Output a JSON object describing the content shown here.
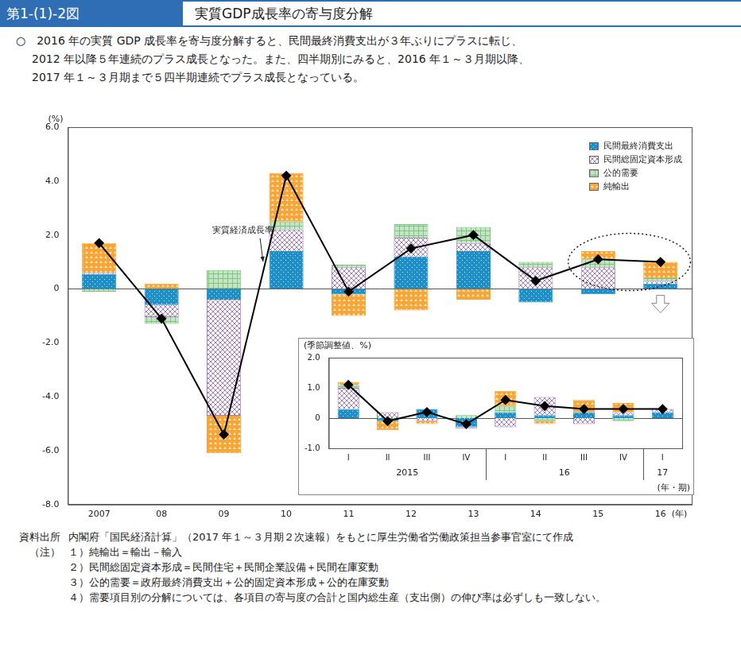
{
  "header": {
    "figure_number": "第1-(1)-2図",
    "title": "実質GDP成長率の寄与度分解"
  },
  "description": [
    "○　2016 年の実質 GDP 成長率を寄与度分解すると、民間最終消費支出が３年ぶりにプラスに転じ、",
    "2012 年以降５年連続のプラス成長となった。また、四半期別にみると、2016 年１～３月期以降、",
    "2017 年１～３月期まで５四半期連続でプラス成長となっている。"
  ],
  "source_label": "資料出所",
  "source": "内閣府「国民経済計算」（2017 年１～３月期２次速報）をもとに厚生労働省労働政策担当参事官室にて作成",
  "notes_label": "（注）",
  "notes": [
    "１）純輸出＝輸出－輸入",
    "２）民間総固定資本形成＝民間住宅＋民間企業設備＋民間在庫変動",
    "３）公的需要＝政府最終消費支出＋公的固定資本形成＋公的在庫変動",
    "４）需要項目別の分解については、各項目の寄与度の合計と国内総生産（支出側）の伸び率は必ずしも一致しない。"
  ],
  "chart_data": [
    {
      "type": "bar",
      "stacked": true,
      "grid": false,
      "legend": "upper right",
      "y_label": "(%)",
      "x_label": "(年)",
      "categories": [
        "2007",
        "08",
        "09",
        "10",
        "11",
        "12",
        "13",
        "14",
        "15",
        "16"
      ],
      "series": [
        {
          "name": "民間最終消費支出",
          "color": "#1f8fc9",
          "values": [
            0.55,
            -0.6,
            -0.4,
            1.4,
            -0.2,
            1.2,
            1.4,
            -0.5,
            -0.2,
            0.2
          ]
        },
        {
          "name": "民間総固定資本形成",
          "color": "#a57dbf",
          "values": [
            0.05,
            -0.45,
            -4.3,
            0.8,
            0.8,
            0.7,
            0.3,
            0.8,
            0.8,
            0.1
          ]
        },
        {
          "name": "公的需要",
          "color": "#7fc47f",
          "values": [
            -0.1,
            -0.25,
            0.7,
            0.3,
            0.1,
            0.5,
            0.6,
            0.2,
            0.3,
            0.1
          ]
        },
        {
          "name": "純輸出",
          "color": "#f7a535",
          "values": [
            1.1,
            0.2,
            -1.4,
            1.8,
            -0.8,
            -0.8,
            -0.4,
            0.0,
            0.3,
            0.6
          ]
        },
        {
          "name": "実質経済成長率",
          "type": "line",
          "color": "#000000",
          "marker": "diamond",
          "values": [
            1.7,
            -1.1,
            -5.4,
            4.2,
            -0.1,
            1.5,
            2.0,
            0.3,
            1.1,
            1.0
          ]
        }
      ],
      "ylim": [
        -8,
        6
      ],
      "yticks": [
        {
          "value": -8,
          "label": "-8.0"
        },
        {
          "value": -6,
          "label": "-6.0"
        },
        {
          "value": -4,
          "label": "-4.0"
        },
        {
          "value": -2,
          "label": "-2.0"
        },
        0,
        {
          "value": 2,
          "label": "2.0"
        },
        {
          "value": 4,
          "label": "4.0"
        },
        {
          "value": 6,
          "label": "6.0"
        }
      ]
    },
    {
      "type": "bar",
      "stacked": true,
      "grid": false,
      "y_label": "(季節調整値、%)",
      "x_label": "(年・期)",
      "categories": [
        "I",
        "II",
        "III",
        "IV",
        "I",
        "II",
        "III",
        "IV",
        "I"
      ],
      "category_groups": [
        {
          "label": "2015",
          "count": 4
        },
        {
          "label": "16",
          "count": 4
        },
        {
          "label": "17",
          "count": 1
        }
      ],
      "series": [
        {
          "name": "民間最終消費支出",
          "color": "#1f8fc9",
          "values": [
            0.3,
            -0.1,
            0.3,
            -0.3,
            0.2,
            0.1,
            0.2,
            0.1,
            0.2
          ]
        },
        {
          "name": "民間総固定資本形成",
          "color": "#a57dbf",
          "values": [
            0.7,
            0.2,
            -0.1,
            -0.05,
            -0.3,
            0.6,
            -0.2,
            0.1,
            0.1
          ]
        },
        {
          "name": "公的需要",
          "color": "#7fc47f",
          "values": [
            0.1,
            0.0,
            0.0,
            0.1,
            0.2,
            -0.1,
            0.0,
            -0.1,
            0.0
          ]
        },
        {
          "name": "純輸出",
          "color": "#f7a535",
          "values": [
            0.1,
            -0.3,
            -0.1,
            0.0,
            0.5,
            -0.1,
            0.4,
            0.3,
            0.0
          ]
        },
        {
          "name": "実質経済成長率",
          "type": "line",
          "color": "#000000",
          "marker": "diamond",
          "values": [
            1.1,
            -0.1,
            0.2,
            -0.2,
            0.6,
            0.4,
            0.3,
            0.3,
            0.3
          ]
        }
      ],
      "ylim": [
        -1,
        2
      ],
      "yticks": [
        {
          "value": -1,
          "label": "-1.0"
        },
        0,
        {
          "value": 1,
          "label": "1.0"
        },
        {
          "value": 2,
          "label": "2.0"
        }
      ]
    }
  ]
}
